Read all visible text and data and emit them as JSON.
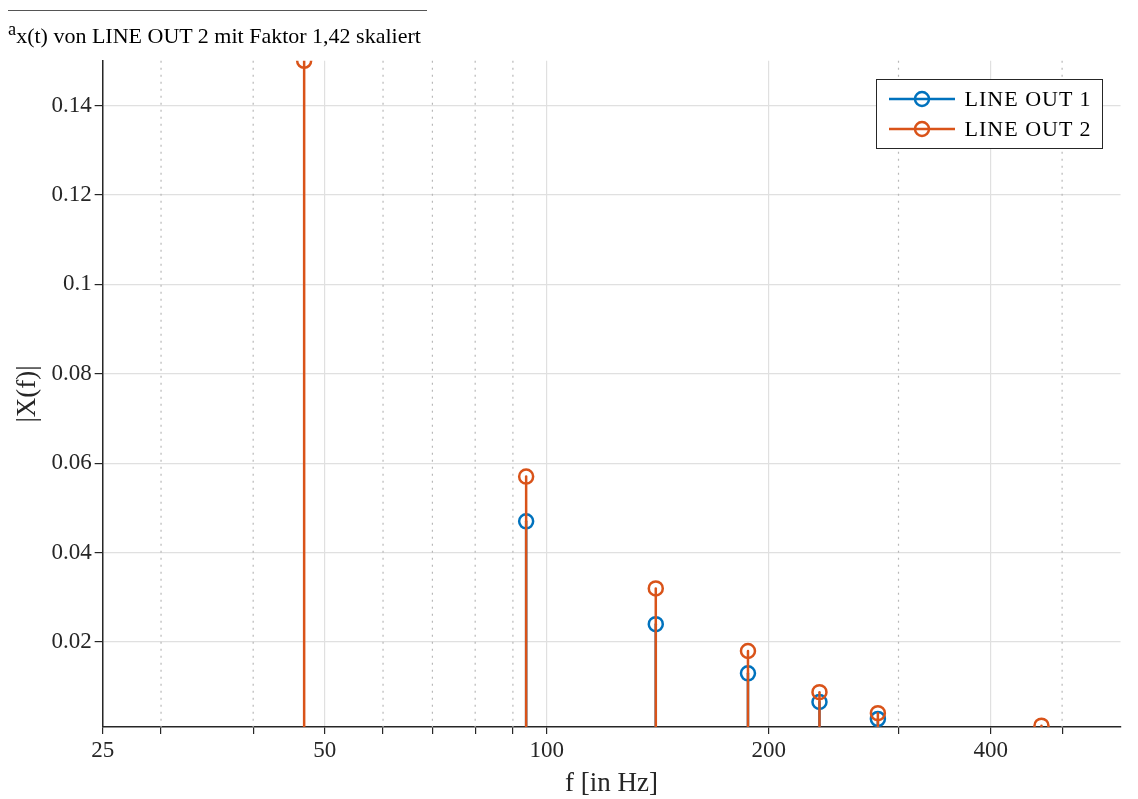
{
  "chart_data": {
    "type": "lollipop",
    "annotations": [
      "$^{a}$x(t) von LINE OUT 2 mit Faktor 1,42 skaliert"
    ],
    "xlabel": "f [in Hz]",
    "ylabel": "|X(f)|",
    "x": [
      46.9,
      93.8,
      140.6,
      187.5,
      234.4,
      281.3,
      468.8
    ],
    "series": [
      {
        "name": "LINE OUT 1",
        "color": "#0072bd",
        "values": [
          null,
          0.047,
          0.024,
          0.013,
          0.0066,
          0.0028,
          null
        ]
      },
      {
        "name": "LINE OUT 2",
        "color": "#d95319",
        "values": [
          0.15,
          0.057,
          0.032,
          0.018,
          0.0088,
          0.0041,
          0.0013
        ]
      }
    ],
    "log": "x",
    "xlim": [
      25,
      600
    ],
    "xticks": [
      25,
      {
        "value": 30,
        "label": null
      },
      {
        "value": 40,
        "label": null
      },
      50,
      {
        "value": 60,
        "label": null
      },
      {
        "value": 70,
        "label": null
      },
      {
        "value": 80,
        "label": null
      },
      {
        "value": 90,
        "label": null
      },
      100,
      200,
      {
        "value": 300,
        "label": null
      },
      400,
      {
        "value": 500,
        "label": null
      }
    ],
    "ylim": [
      0.001,
      0.15
    ],
    "yticks": [
      0.02,
      0.04,
      0.06,
      0.08,
      0.1,
      0.12,
      0.14
    ],
    "grid": true,
    "legend": "top right",
    "marker": "circle",
    "line_style": "solid"
  }
}
